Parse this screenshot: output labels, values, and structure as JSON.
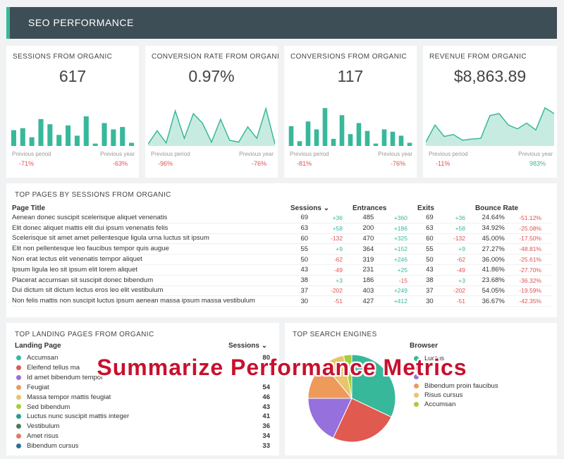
{
  "header": {
    "title": "SEO PERFORMANCE"
  },
  "kpis": [
    {
      "label": "SESSIONS FROM ORGANIC",
      "value": "617",
      "type": "bar",
      "prev_label": "Previous period",
      "year_label": "Previous year",
      "prev_change": "-71%",
      "year_change": "-63%",
      "prev_sign": "neg",
      "year_sign": "neg",
      "series": [
        40,
        45,
        22,
        68,
        55,
        28,
        52,
        26,
        75,
        6,
        58,
        42,
        48,
        8
      ]
    },
    {
      "label": "CONVERSION RATE FROM ORGANI",
      "value": "0.97%",
      "type": "area",
      "prev_label": "Previous period",
      "year_label": "Previous year",
      "prev_change": "-96%",
      "year_change": "-76%",
      "prev_sign": "neg",
      "year_sign": "neg",
      "series": [
        5,
        40,
        8,
        92,
        20,
        85,
        60,
        10,
        70,
        15,
        10,
        50,
        20,
        98,
        5
      ]
    },
    {
      "label": "CONVERSIONS FROM ORGANIC",
      "value": "117",
      "type": "bar",
      "prev_label": "Previous period",
      "year_label": "Previous year",
      "prev_change": "-81%",
      "year_change": "-76%",
      "prev_sign": "neg",
      "year_sign": "neg",
      "series": [
        50,
        12,
        62,
        42,
        96,
        18,
        78,
        30,
        58,
        38,
        6,
        42,
        36,
        26,
        8
      ]
    },
    {
      "label": "REVENUE FROM ORGANIC",
      "value": "$8,863.89",
      "type": "area",
      "prev_label": "Previous period",
      "year_label": "Previous year",
      "prev_change": "-11%",
      "year_change": "983%",
      "prev_sign": "neg",
      "year_sign": "pos",
      "series": [
        10,
        55,
        25,
        30,
        15,
        18,
        20,
        80,
        85,
        55,
        45,
        60,
        42,
        100,
        85
      ]
    }
  ],
  "top_pages": {
    "title": "TOP PAGES BY SESSIONS FROM ORGANIC",
    "headers": {
      "page": "Page Title",
      "sessions": "Sessions ⌄",
      "entrances": "Entrances",
      "exits": "Exits",
      "bounce": "Bounce Rate"
    },
    "rows": [
      {
        "title": "Aenean donec suscipit scelerisque aliquet venenatis",
        "sessions": "69",
        "sessions_delta": "+36",
        "entrances": "485",
        "entrances_delta": "+360",
        "exits": "69",
        "exits_delta": "+36",
        "bounce": "24.64%",
        "bounce_delta": "-51.12%"
      },
      {
        "title": "Elit donec aliquet mattis elit dui ipsum venenatis felis",
        "sessions": "63",
        "sessions_delta": "+58",
        "entrances": "200",
        "entrances_delta": "+186",
        "exits": "63",
        "exits_delta": "+58",
        "bounce": "34.92%",
        "bounce_delta": "-25.08%"
      },
      {
        "title": "Scelerisque sit amet amet pellentesque ligula urna luctus sit ipsum",
        "sessions": "60",
        "sessions_delta": "-132",
        "entrances": "470",
        "entrances_delta": "+325",
        "exits": "60",
        "exits_delta": "-132",
        "bounce": "45.00%",
        "bounce_delta": "-17.50%"
      },
      {
        "title": "Elit non pellentesque leo faucibus tempor quis augue",
        "sessions": "55",
        "sessions_delta": "+9",
        "entrances": "364",
        "entrances_delta": "+152",
        "exits": "55",
        "exits_delta": "+9",
        "bounce": "27.27%",
        "bounce_delta": "-48.81%"
      },
      {
        "title": "Non erat lectus elit venenatis tempor aliquet",
        "sessions": "50",
        "sessions_delta": "-62",
        "entrances": "319",
        "entrances_delta": "+246",
        "exits": "50",
        "exits_delta": "-62",
        "bounce": "36.00%",
        "bounce_delta": "-25.61%"
      },
      {
        "title": "Ipsum ligula leo sit ipsum elit lorem aliquet",
        "sessions": "43",
        "sessions_delta": "-49",
        "entrances": "231",
        "entrances_delta": "+25",
        "exits": "43",
        "exits_delta": "-49",
        "bounce": "41.86%",
        "bounce_delta": "-27.70%"
      },
      {
        "title": "Placerat accumsan sit suscipit donec bibendum",
        "sessions": "38",
        "sessions_delta": "+3",
        "entrances": "186",
        "entrances_delta": "-15",
        "exits": "38",
        "exits_delta": "+3",
        "bounce": "23.68%",
        "bounce_delta": "-36.32%"
      },
      {
        "title": "Dui dictum sit dictum lectus eros leo elit vestibulum",
        "sessions": "37",
        "sessions_delta": "-202",
        "entrances": "403",
        "entrances_delta": "+249",
        "exits": "37",
        "exits_delta": "-202",
        "bounce": "54.05%",
        "bounce_delta": "-19.59%"
      },
      {
        "title": "Non felis mattis non suscipit luctus ipsum aenean massa ipsum massa vestibulum",
        "sessions": "30",
        "sessions_delta": "-51",
        "entrances": "427",
        "entrances_delta": "+412",
        "exits": "30",
        "exits_delta": "-51",
        "bounce": "36.67%",
        "bounce_delta": "-42.35%"
      }
    ]
  },
  "landing_pages": {
    "title": "TOP LANDING PAGES FROM ORGANIC",
    "headers": {
      "page": "Landing Page",
      "sessions": "Sessions ⌄"
    },
    "rows": [
      {
        "label": "Accumsan",
        "value": "80",
        "color": "#38b89a"
      },
      {
        "label": "Eleifend tellus ma",
        "value": "",
        "color": "#e05a4f"
      },
      {
        "label": "Id amet bibendum tempor",
        "value": "",
        "color": "#9670dc"
      },
      {
        "label": "Feugiat",
        "value": "54",
        "color": "#ee9a5a"
      },
      {
        "label": "Massa tempor mattis feugiat",
        "value": "46",
        "color": "#e9c46a"
      },
      {
        "label": "Sed bibendum",
        "value": "43",
        "color": "#a8cc3b"
      },
      {
        "label": "Luctus nunc suscipit mattis integer",
        "value": "41",
        "color": "#2a9d8f"
      },
      {
        "label": "Vestibulum",
        "value": "36",
        "color": "#4a7c59"
      },
      {
        "label": "Amet risus",
        "value": "34",
        "color": "#e07a5f"
      },
      {
        "label": "Bibendum cursus",
        "value": "33",
        "color": "#2a6f97"
      }
    ]
  },
  "search_engines": {
    "title": "TOP SEARCH ENGINES",
    "legend_title": "Browser",
    "items": [
      {
        "label": "Luctus",
        "value": 32,
        "color": "#38b89a"
      },
      {
        "label": "",
        "value": 25,
        "color": "#e05a4f"
      },
      {
        "label": "",
        "value": 18,
        "color": "#9670dc"
      },
      {
        "label": "Bibendum proin faucibus",
        "value": 14,
        "color": "#ee9a5a"
      },
      {
        "label": "Risus cursus",
        "value": 8,
        "color": "#e9c46a"
      },
      {
        "label": "Accumsan",
        "value": 3,
        "color": "#a8cc3b"
      }
    ]
  },
  "overlay_text": "Summarize Performance Metrics"
}
